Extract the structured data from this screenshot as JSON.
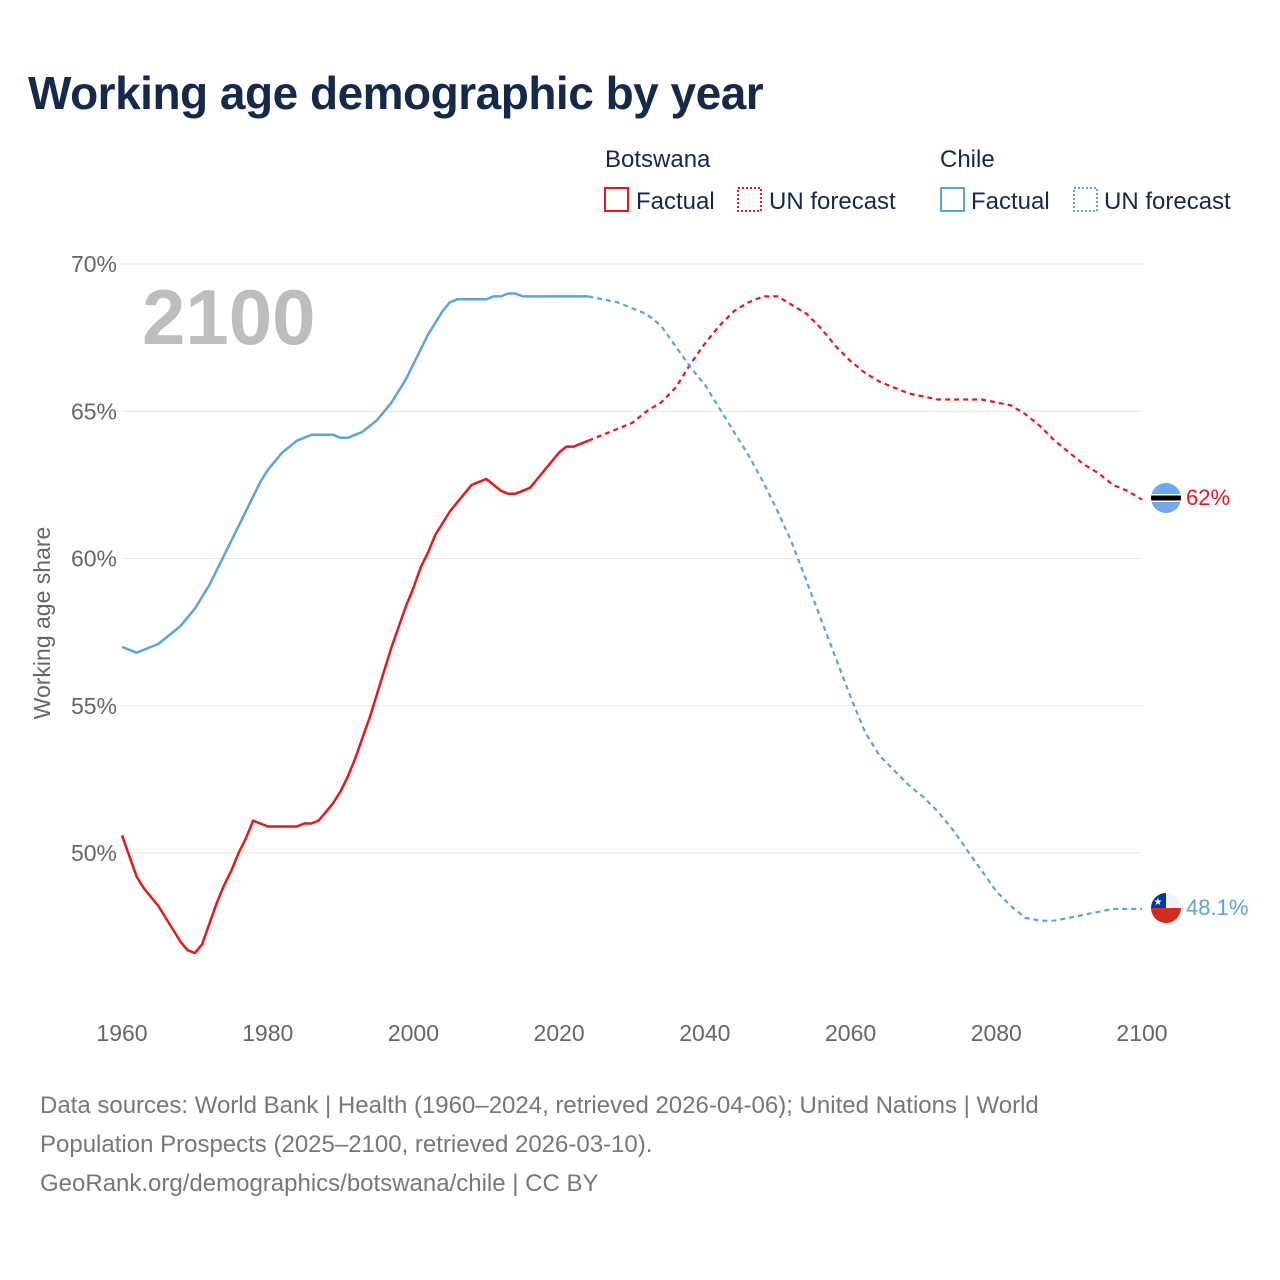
{
  "chart_data": {
    "type": "line",
    "title": "Working age demographic by year",
    "ylabel": "Working age share",
    "xlabel": "",
    "xlim": [
      1960,
      2100
    ],
    "ylim": [
      45,
      70
    ],
    "yticks": [
      50,
      55,
      60,
      65,
      70
    ],
    "ytick_labels": [
      "50%",
      "55%",
      "60%",
      "65%",
      "70%"
    ],
    "xticks": [
      1960,
      1980,
      2000,
      2020,
      2040,
      2060,
      2080,
      2100
    ],
    "xtick_labels": [
      "1960",
      "1980",
      "2000",
      "2020",
      "2040",
      "2060",
      "2080",
      "2100"
    ],
    "year_label": "2100",
    "legend": {
      "groups": [
        {
          "name": "Botswana",
          "factual": "Factual",
          "forecast": "UN forecast"
        },
        {
          "name": "Chile",
          "factual": "Factual",
          "forecast": "UN forecast"
        }
      ]
    },
    "series": [
      {
        "name": "Botswana",
        "color": "#e31a1c",
        "end_label": "62%",
        "factual": {
          "x": [
            1960,
            1961,
            1962,
            1963,
            1964,
            1965,
            1966,
            1967,
            1968,
            1969,
            1970,
            1971,
            1972,
            1973,
            1974,
            1975,
            1976,
            1977,
            1978,
            1979,
            1980,
            1981,
            1982,
            1983,
            1984,
            1985,
            1986,
            1987,
            1988,
            1989,
            1990,
            1991,
            1992,
            1993,
            1994,
            1995,
            1996,
            1997,
            1998,
            1999,
            2000,
            2001,
            2002,
            2003,
            2004,
            2005,
            2006,
            2007,
            2008,
            2009,
            2010,
            2011,
            2012,
            2013,
            2014,
            2015,
            2016,
            2017,
            2018,
            2019,
            2020,
            2021,
            2022,
            2023,
            2024
          ],
          "y": [
            50.6,
            49.9,
            49.2,
            48.8,
            48.5,
            48.2,
            47.8,
            47.4,
            47.0,
            46.7,
            46.6,
            46.9,
            47.6,
            48.3,
            48.9,
            49.4,
            50.0,
            50.5,
            51.1,
            51.0,
            50.9,
            50.9,
            50.9,
            50.9,
            50.9,
            51.0,
            51.0,
            51.1,
            51.4,
            51.7,
            52.1,
            52.6,
            53.2,
            53.9,
            54.6,
            55.4,
            56.2,
            57.0,
            57.7,
            58.4,
            59.0,
            59.7,
            60.2,
            60.8,
            61.2,
            61.6,
            61.9,
            62.2,
            62.5,
            62.6,
            62.7,
            62.5,
            62.3,
            62.2,
            62.2,
            62.3,
            62.4,
            62.7,
            63.0,
            63.3,
            63.6,
            63.8,
            63.8,
            63.9,
            64.0
          ]
        },
        "forecast": {
          "x": [
            2024,
            2026,
            2028,
            2030,
            2032,
            2034,
            2036,
            2038,
            2040,
            2042,
            2044,
            2046,
            2048,
            2050,
            2052,
            2054,
            2056,
            2058,
            2060,
            2062,
            2064,
            2066,
            2068,
            2070,
            2072,
            2074,
            2076,
            2078,
            2080,
            2082,
            2084,
            2086,
            2088,
            2090,
            2092,
            2094,
            2096,
            2098,
            2100
          ],
          "y": [
            64.0,
            64.2,
            64.4,
            64.6,
            65.0,
            65.3,
            65.8,
            66.6,
            67.3,
            67.9,
            68.4,
            68.7,
            68.9,
            68.9,
            68.6,
            68.3,
            67.8,
            67.2,
            66.7,
            66.3,
            66.0,
            65.8,
            65.6,
            65.5,
            65.4,
            65.4,
            65.4,
            65.4,
            65.3,
            65.2,
            64.9,
            64.5,
            64.0,
            63.6,
            63.2,
            62.9,
            62.5,
            62.3,
            62.0
          ]
        }
      },
      {
        "name": "Chile",
        "color": "#5ba3e2",
        "end_label": "48.1%",
        "factual": {
          "x": [
            1960,
            1961,
            1962,
            1963,
            1964,
            1965,
            1966,
            1967,
            1968,
            1969,
            1970,
            1971,
            1972,
            1973,
            1974,
            1975,
            1976,
            1977,
            1978,
            1979,
            1980,
            1981,
            1982,
            1983,
            1984,
            1985,
            1986,
            1987,
            1988,
            1989,
            1990,
            1991,
            1992,
            1993,
            1994,
            1995,
            1996,
            1997,
            1998,
            1999,
            2000,
            2001,
            2002,
            2003,
            2004,
            2005,
            2006,
            2007,
            2008,
            2009,
            2010,
            2011,
            2012,
            2013,
            2014,
            2015,
            2016,
            2017,
            2018,
            2019,
            2020,
            2021,
            2022,
            2023,
            2024
          ],
          "y": [
            57.0,
            56.9,
            56.8,
            56.9,
            57.0,
            57.1,
            57.3,
            57.5,
            57.7,
            58.0,
            58.3,
            58.7,
            59.1,
            59.6,
            60.1,
            60.6,
            61.1,
            61.6,
            62.1,
            62.6,
            63.0,
            63.3,
            63.6,
            63.8,
            64.0,
            64.1,
            64.2,
            64.2,
            64.2,
            64.2,
            64.1,
            64.1,
            64.2,
            64.3,
            64.5,
            64.7,
            65.0,
            65.3,
            65.7,
            66.1,
            66.6,
            67.1,
            67.6,
            68.0,
            68.4,
            68.7,
            68.8,
            68.8,
            68.8,
            68.8,
            68.8,
            68.9,
            68.9,
            69.0,
            69.0,
            68.9,
            68.9,
            68.9,
            68.9,
            68.9,
            68.9,
            68.9,
            68.9,
            68.9,
            68.9
          ]
        },
        "forecast": {
          "x": [
            2024,
            2026,
            2028,
            2030,
            2032,
            2034,
            2036,
            2038,
            2040,
            2042,
            2044,
            2046,
            2048,
            2050,
            2052,
            2054,
            2056,
            2058,
            2060,
            2062,
            2064,
            2066,
            2068,
            2070,
            2072,
            2074,
            2076,
            2078,
            2080,
            2082,
            2084,
            2086,
            2088,
            2090,
            2092,
            2094,
            2096,
            2098,
            2100
          ],
          "y": [
            68.9,
            68.8,
            68.7,
            68.5,
            68.3,
            67.9,
            67.2,
            66.5,
            65.9,
            65.1,
            64.3,
            63.5,
            62.6,
            61.6,
            60.5,
            59.2,
            57.9,
            56.6,
            55.3,
            54.1,
            53.3,
            52.8,
            52.3,
            51.9,
            51.4,
            50.8,
            50.1,
            49.4,
            48.7,
            48.2,
            47.8,
            47.7,
            47.7,
            47.8,
            47.9,
            48.0,
            48.1,
            48.1,
            48.1
          ]
        }
      }
    ]
  },
  "footer": {
    "line1": "Data sources: World Bank | Health (1960–2024, retrieved 2026-04-06); United Nations | World",
    "line2": "Population Prospects (2025–2100, retrieved 2026-03-10).",
    "line3": "GeoRank.org/demographics/botswana/chile | CC BY"
  }
}
